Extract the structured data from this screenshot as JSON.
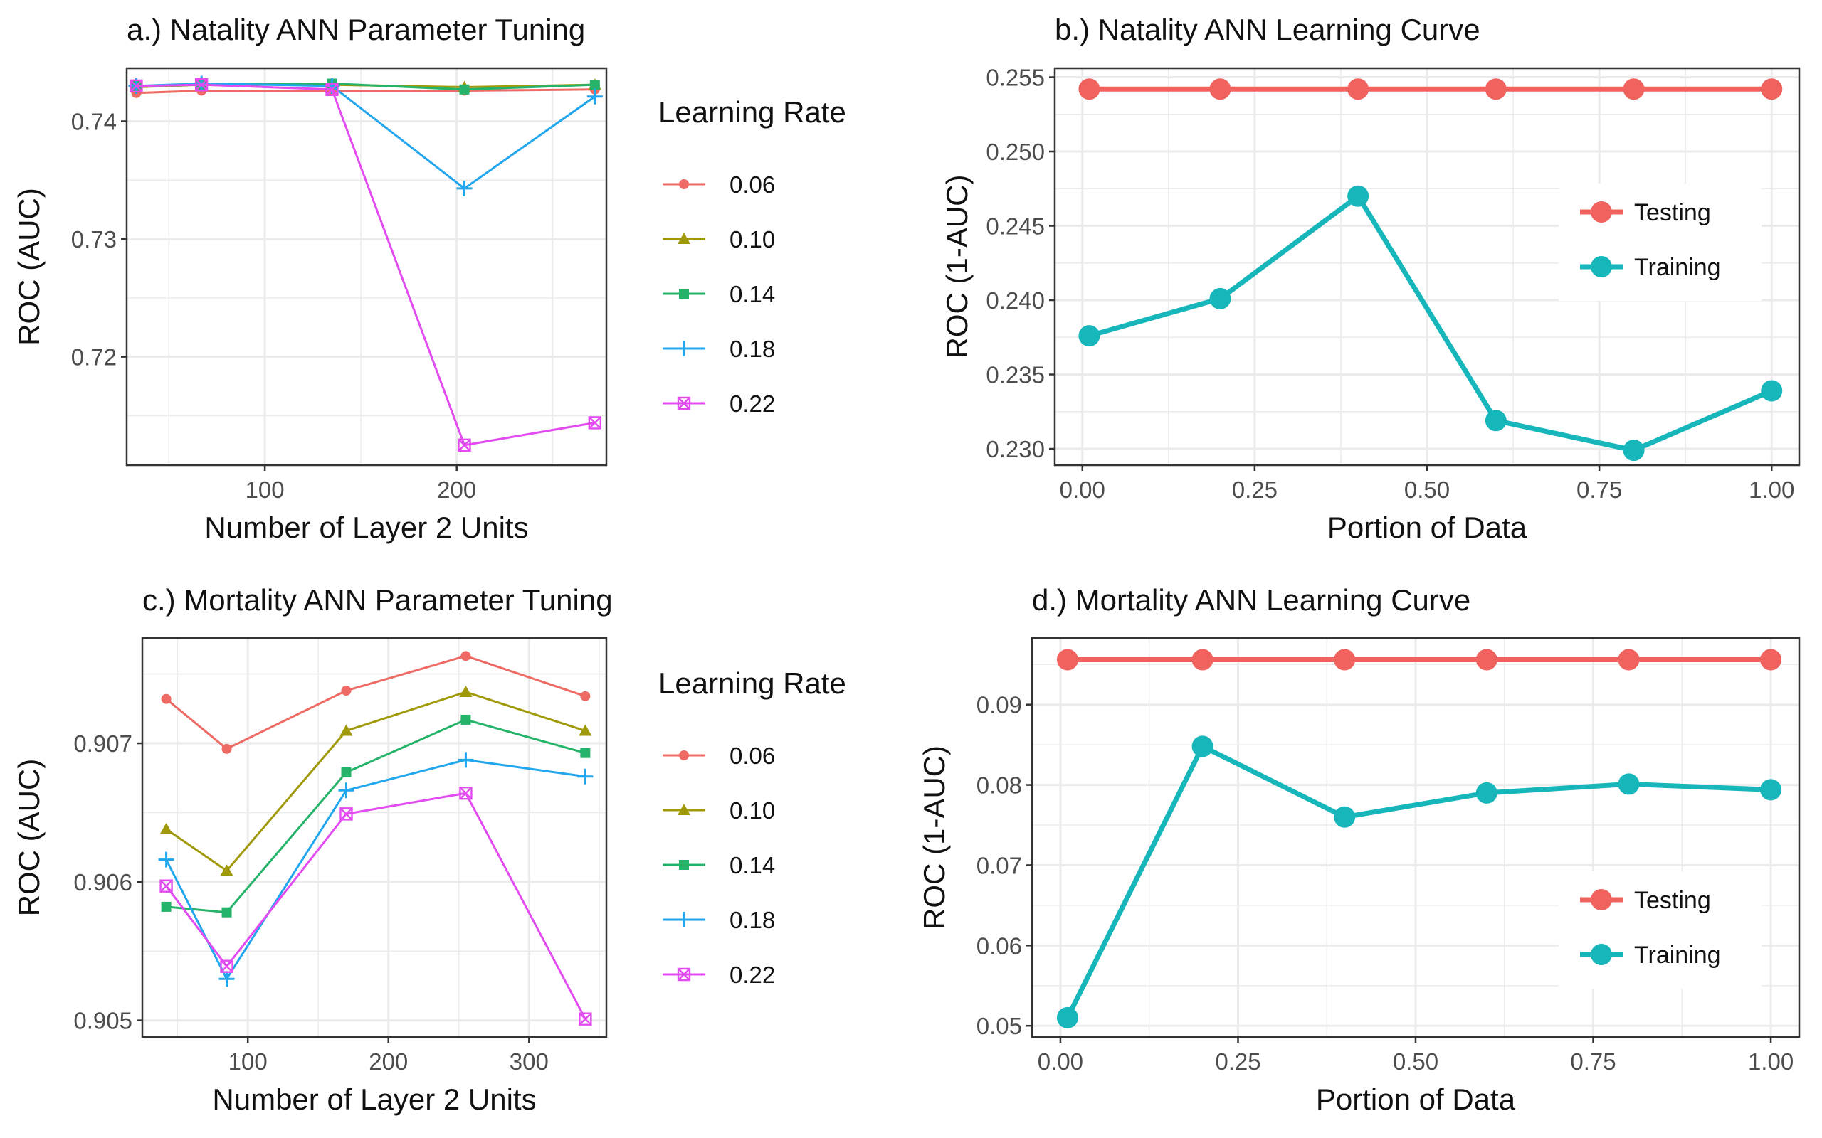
{
  "colors": {
    "lr_0_06": "#ee6a64",
    "lr_0_10": "#a09a0a",
    "lr_0_14": "#25b36a",
    "lr_0_18": "#22a6ee",
    "lr_0_22": "#e24bf0",
    "testing": "#f0625e",
    "training": "#16b6ba",
    "grid": "#ebebeb",
    "axis_text": "#4d4d4d",
    "panel_border": "#333333"
  },
  "chart_data": [
    {
      "type": "line",
      "title": "a.) Natality ANN Parameter Tuning",
      "xlabel": "Number of Layer 2 Units",
      "ylabel": "ROC (AUC)",
      "xlim": [
        28,
        278
      ],
      "ylim": [
        0.7108,
        0.7445
      ],
      "xticks": [
        100,
        200
      ],
      "xtick_labels": [
        "100",
        "200"
      ],
      "yticks": [
        0.72,
        0.73,
        0.74
      ],
      "ytick_labels": [
        "0.72",
        "0.73",
        "0.74"
      ],
      "grid": true,
      "legend_title": "Learning Rate",
      "legend_position": "right",
      "x": [
        33,
        67,
        135,
        204,
        272
      ],
      "series": [
        {
          "name": "0.06",
          "marker": "circle",
          "values": [
            0.7424,
            0.7426,
            0.7426,
            0.7426,
            0.7427
          ]
        },
        {
          "name": "0.10",
          "marker": "triangle",
          "values": [
            0.7429,
            0.7431,
            0.7431,
            0.7429,
            0.7431
          ]
        },
        {
          "name": "0.14",
          "marker": "square",
          "values": [
            0.743,
            0.7431,
            0.7432,
            0.7427,
            0.7431
          ]
        },
        {
          "name": "0.18",
          "marker": "plus",
          "values": [
            0.743,
            0.7432,
            0.743,
            0.7343,
            0.7421
          ]
        },
        {
          "name": "0.22",
          "marker": "boxcross",
          "values": [
            0.743,
            0.7431,
            0.7427,
            0.7125,
            0.7144
          ]
        }
      ]
    },
    {
      "type": "line",
      "title": "b.) Natality ANN Learning Curve",
      "xlabel": "Portion of Data",
      "ylabel": "ROC (1-AUC)",
      "xlim": [
        -0.04,
        1.04
      ],
      "ylim": [
        0.2289,
        0.2556
      ],
      "xticks": [
        0,
        0.25,
        0.5,
        0.75,
        1
      ],
      "xtick_labels": [
        "0.00",
        "0.25",
        "0.50",
        "0.75",
        "1.00"
      ],
      "yticks": [
        0.23,
        0.235,
        0.24,
        0.245,
        0.25,
        0.255
      ],
      "ytick_labels": [
        "0.230",
        "0.235",
        "0.240",
        "0.245",
        "0.250",
        "0.255"
      ],
      "grid": true,
      "legend_position": "inside-right",
      "x": [
        0.01,
        0.2,
        0.4,
        0.6,
        0.8,
        1.0
      ],
      "series": [
        {
          "name": "Testing",
          "values": [
            0.2542,
            0.2542,
            0.2542,
            0.2542,
            0.2542,
            0.2542
          ]
        },
        {
          "name": "Training",
          "values": [
            0.2376,
            0.2401,
            0.247,
            0.2319,
            0.2299,
            0.2339
          ]
        }
      ]
    },
    {
      "type": "line",
      "title": "c.) Mortality ANN Parameter Tuning",
      "xlabel": "Number of Layer 2 Units",
      "ylabel": "ROC (AUC)",
      "xlim": [
        25,
        355
      ],
      "ylim": [
        0.90488,
        0.90776
      ],
      "xticks": [
        100,
        200,
        300
      ],
      "xtick_labels": [
        "100",
        "200",
        "300"
      ],
      "yticks": [
        0.905,
        0.906,
        0.907
      ],
      "ytick_labels": [
        "0.905",
        "0.906",
        "0.907"
      ],
      "grid": true,
      "legend_title": "Learning Rate",
      "legend_position": "right",
      "x": [
        42,
        85,
        170,
        255,
        340
      ],
      "series": [
        {
          "name": "0.06",
          "marker": "circle",
          "values": [
            0.90732,
            0.90696,
            0.90738,
            0.90763,
            0.90734
          ]
        },
        {
          "name": "0.10",
          "marker": "triangle",
          "values": [
            0.90638,
            0.90608,
            0.90709,
            0.90737,
            0.90709
          ]
        },
        {
          "name": "0.14",
          "marker": "square",
          "values": [
            0.90582,
            0.90578,
            0.90679,
            0.90717,
            0.90693
          ]
        },
        {
          "name": "0.18",
          "marker": "plus",
          "values": [
            0.90616,
            0.9053,
            0.90666,
            0.90688,
            0.90676
          ]
        },
        {
          "name": "0.22",
          "marker": "boxcross",
          "values": [
            0.90597,
            0.90539,
            0.90649,
            0.90664,
            0.90501
          ]
        }
      ]
    },
    {
      "type": "line",
      "title": "d.) Mortality ANN Learning Curve",
      "xlabel": "Portion of Data",
      "ylabel": "ROC (1-AUC)",
      "xlim": [
        -0.04,
        1.04
      ],
      "ylim": [
        0.0486,
        0.0983
      ],
      "xticks": [
        0,
        0.25,
        0.5,
        0.75,
        1
      ],
      "xtick_labels": [
        "0.00",
        "0.25",
        "0.50",
        "0.75",
        "1.00"
      ],
      "yticks": [
        0.05,
        0.06,
        0.07,
        0.08,
        0.09
      ],
      "ytick_labels": [
        "0.05",
        "0.06",
        "0.07",
        "0.08",
        "0.09"
      ],
      "grid": true,
      "legend_position": "inside-right",
      "x": [
        0.01,
        0.2,
        0.4,
        0.6,
        0.8,
        1.0
      ],
      "series": [
        {
          "name": "Testing",
          "values": [
            0.0956,
            0.0956,
            0.0956,
            0.0956,
            0.0956,
            0.0956
          ]
        },
        {
          "name": "Training",
          "values": [
            0.051,
            0.0848,
            0.076,
            0.079,
            0.0801,
            0.0794
          ]
        }
      ]
    }
  ]
}
